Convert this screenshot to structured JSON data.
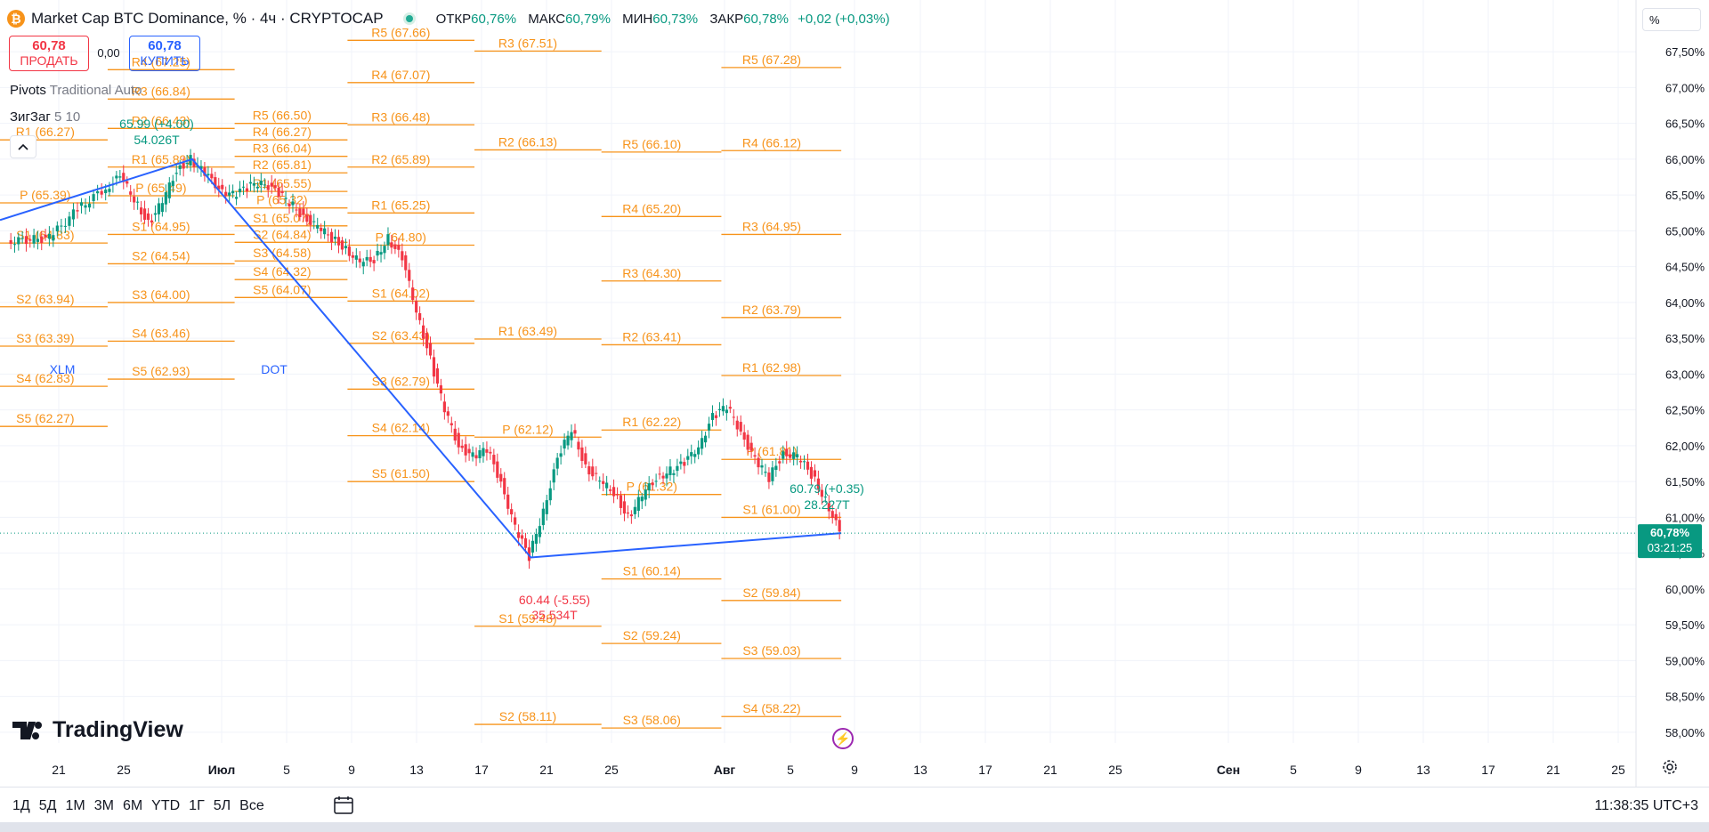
{
  "header": {
    "coin_glyph": "₿",
    "title": "Market Cap BTC Dominance, % · 4ч · CRYPTOCAP",
    "ohlc": [
      {
        "k": "ОТКР",
        "v": "60,76%"
      },
      {
        "k": "МАКС",
        "v": "60,79%"
      },
      {
        "k": "МИН",
        "v": "60,73%"
      },
      {
        "k": "ЗАКР",
        "v": "60,78%"
      },
      {
        "k": "",
        "v": "+0,02 (+0,03%)"
      }
    ]
  },
  "trade": {
    "sell_price": "60,78",
    "sell_label": "ПРОДАТЬ",
    "spread": "0,00",
    "buy_price": "60,78",
    "buy_label": "КУПИТЬ"
  },
  "indicators": {
    "pivots_name": "Pivots",
    "pivots_params": "Traditional Auto",
    "zigzag_name": "ЗигЗаг",
    "zigzag_params": "5 10"
  },
  "scale_unit": "%",
  "brand": "TradingView",
  "timeframes": [
    "1Д",
    "5Д",
    "1М",
    "3М",
    "6М",
    "YTD",
    "1Г",
    "5Л",
    "Все"
  ],
  "clock": "11:38:35 UTC+3",
  "colors": {
    "up": "#089981",
    "down": "#f23645",
    "pivot": "#f7931a",
    "zigzag": "#2962ff",
    "grid": "#f0f3fa"
  },
  "chart_data": {
    "type": "candlestick",
    "title": "Market Cap BTC Dominance, % · 4ч · CRYPTOCAP",
    "ylim": [
      57.85,
      67.85
    ],
    "y_ticks": [
      "58,00%",
      "58,50%",
      "59,00%",
      "59,50%",
      "60,00%",
      "60,50%",
      "61,00%",
      "61,50%",
      "62,00%",
      "62,50%",
      "63,00%",
      "63,50%",
      "64,00%",
      "64,50%",
      "65,00%",
      "65,50%",
      "66,00%",
      "66,50%",
      "67,00%",
      "67,50%"
    ],
    "x_ticks": [
      "21",
      "25",
      "Июл",
      "5",
      "9",
      "13",
      "17",
      "21",
      "25",
      "Авг",
      "5",
      "9",
      "13",
      "17",
      "21",
      "25",
      "Сен",
      "5",
      "9",
      "13",
      "17",
      "21",
      "25"
    ],
    "last_price": {
      "value": 60.78,
      "label": "60,78%",
      "countdown": "03:21:25"
    },
    "price_path": [
      [
        0,
        64.85
      ],
      [
        3,
        64.9
      ],
      [
        5,
        65.3
      ],
      [
        7,
        65.6
      ],
      [
        8,
        65.75
      ],
      [
        9,
        65.45
      ],
      [
        10,
        65.1
      ],
      [
        11,
        65.4
      ],
      [
        12,
        65.85
      ],
      [
        13,
        66.0
      ],
      [
        14,
        65.8
      ],
      [
        15,
        65.6
      ],
      [
        16,
        65.5
      ],
      [
        17,
        65.6
      ],
      [
        18,
        65.7
      ],
      [
        19,
        65.55
      ],
      [
        20,
        65.4
      ],
      [
        21,
        65.2
      ],
      [
        22,
        65.05
      ],
      [
        23,
        64.9
      ],
      [
        24,
        64.75
      ],
      [
        25,
        64.55
      ],
      [
        26,
        64.6
      ],
      [
        27,
        64.9
      ],
      [
        28,
        64.6
      ],
      [
        29,
        63.9
      ],
      [
        30,
        63.2
      ],
      [
        31,
        62.5
      ],
      [
        32,
        62.0
      ],
      [
        33,
        61.85
      ],
      [
        34,
        61.95
      ],
      [
        35,
        61.5
      ],
      [
        36,
        60.85
      ],
      [
        37,
        60.45
      ],
      [
        38,
        61.1
      ],
      [
        39,
        61.8
      ],
      [
        40,
        62.25
      ],
      [
        41,
        61.7
      ],
      [
        42,
        61.5
      ],
      [
        43,
        61.35
      ],
      [
        44,
        61.0
      ],
      [
        45,
        61.3
      ],
      [
        46,
        61.55
      ],
      [
        47,
        61.65
      ],
      [
        48,
        61.75
      ],
      [
        49,
        62.0
      ],
      [
        50,
        62.4
      ],
      [
        51,
        62.55
      ],
      [
        52,
        62.2
      ],
      [
        53,
        61.8
      ],
      [
        54,
        61.55
      ],
      [
        55,
        61.9
      ],
      [
        56,
        61.85
      ],
      [
        57,
        61.6
      ],
      [
        58,
        61.25
      ],
      [
        59,
        60.79
      ]
    ],
    "zigzag": {
      "points": [
        [
          0,
          65.15
        ],
        [
          13,
          66.0
        ],
        [
          37,
          60.44
        ],
        [
          59,
          60.78
        ]
      ],
      "labels": [
        {
          "text": "65.99 (+4.00)",
          "color": "#089981"
        },
        {
          "text": "54.026T",
          "color": "#089981"
        },
        {
          "text": "60.44 (-5.55)",
          "color": "#f23645"
        },
        {
          "text": "35.534T",
          "color": "#f23645"
        },
        {
          "text": "60.79 (+0.35)",
          "color": "#089981"
        },
        {
          "text": "28.227T",
          "color": "#089981"
        }
      ]
    },
    "pivot_blocks": [
      {
        "a": -3,
        "b": 7,
        "levels": [
          [
            "R1 (66.27)",
            66.27
          ],
          [
            "P (65.39)",
            65.39
          ],
          [
            "S1 (64.83)",
            64.83
          ],
          [
            "S2 (63.94)",
            63.94
          ],
          [
            "S3 (63.39)",
            63.39
          ],
          [
            "S4 (62.83)",
            62.83
          ],
          [
            "S5 (62.27)",
            62.27
          ]
        ]
      },
      {
        "a": 7,
        "b": 16,
        "levels": [
          [
            "R4 (67.25)",
            67.25
          ],
          [
            "R3 (66.84)",
            66.84
          ],
          [
            "R2 (66.43)",
            66.43
          ],
          [
            "R1 (65.89)",
            65.89
          ],
          [
            "P (65.49)",
            65.49
          ],
          [
            "S1 (64.95)",
            64.95
          ],
          [
            "S2 (64.54)",
            64.54
          ],
          [
            "S3 (64.00)",
            64.0
          ],
          [
            "S4 (63.46)",
            63.46
          ],
          [
            "S5 (62.93)",
            62.93
          ]
        ]
      },
      {
        "a": 16,
        "b": 24,
        "levels": [
          [
            "R5 (66.50)",
            66.5
          ],
          [
            "R4 (66.27)",
            66.27
          ],
          [
            "R3 (66.04)",
            66.04
          ],
          [
            "R2 (65.81)",
            65.81
          ],
          [
            "R1 (65.55)",
            65.55
          ],
          [
            "P (65.32)",
            65.32
          ],
          [
            "S1 (65.07)",
            65.07
          ],
          [
            "S2 (64.84)",
            64.84
          ],
          [
            "S3 (64.58)",
            64.58
          ],
          [
            "S4 (64.32)",
            64.32
          ],
          [
            "S5 (64.07)",
            64.07
          ]
        ]
      },
      {
        "a": 24,
        "b": 33,
        "levels": [
          [
            "R5 (67.66)",
            67.66
          ],
          [
            "R4 (67.07)",
            67.07
          ],
          [
            "R3 (66.48)",
            66.48
          ],
          [
            "R2 (65.89)",
            65.89
          ],
          [
            "R1 (65.25)",
            65.25
          ],
          [
            "P (64.80)",
            64.8
          ],
          [
            "S1 (64.02)",
            64.02
          ],
          [
            "S2 (63.43)",
            63.43
          ],
          [
            "S3 (62.79)",
            62.79
          ],
          [
            "S4 (62.14)",
            62.14
          ],
          [
            "S5 (61.50)",
            61.5
          ]
        ]
      },
      {
        "a": 33,
        "b": 42,
        "levels": [
          [
            "R3 (67.51)",
            67.51
          ],
          [
            "R2 (66.13)",
            66.13
          ],
          [
            "R1 (63.49)",
            63.49
          ],
          [
            "P (62.12)",
            62.12
          ],
          [
            "S1 (59.48)",
            59.48
          ],
          [
            "S2 (58.11)",
            58.11
          ]
        ]
      },
      {
        "a": 42,
        "b": 50.5,
        "levels": [
          [
            "R5 (66.10)",
            66.1
          ],
          [
            "R4 (65.20)",
            65.2
          ],
          [
            "R3 (64.30)",
            64.3
          ],
          [
            "R2 (63.41)",
            63.41
          ],
          [
            "R1 (62.22)",
            62.22
          ],
          [
            "P (61.32)",
            61.32
          ],
          [
            "S1 (60.14)",
            60.14
          ],
          [
            "S2 (59.24)",
            59.24
          ],
          [
            "S3 (58.06)",
            58.06
          ]
        ]
      },
      {
        "a": 50.5,
        "b": 59,
        "levels": [
          [
            "R5 (67.28)",
            67.28
          ],
          [
            "R4 (66.12)",
            66.12
          ],
          [
            "R3 (64.95)",
            64.95
          ],
          [
            "R2 (63.79)",
            63.79
          ],
          [
            "R1 (62.98)",
            62.98
          ],
          [
            "P (61.81)",
            61.81
          ],
          [
            "S1 (61.00)",
            61.0
          ],
          [
            "S2 (59.84)",
            59.84
          ],
          [
            "S3 (59.03)",
            59.03
          ],
          [
            "S4 (58.22)",
            58.22
          ]
        ]
      }
    ],
    "symbols": [
      "XLM",
      "DOT"
    ]
  }
}
